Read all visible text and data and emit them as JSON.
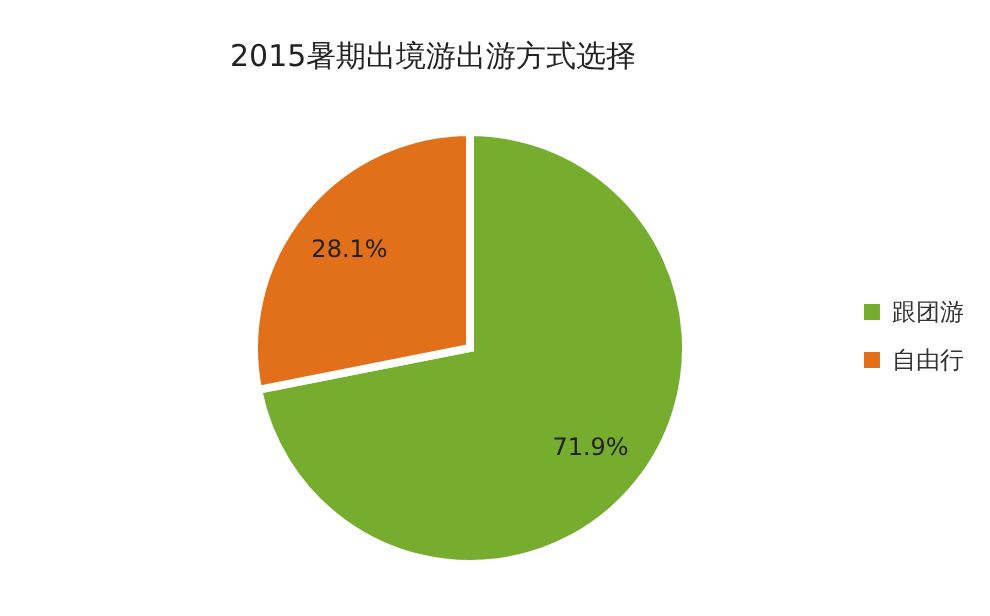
{
  "chart_data": {
    "type": "pie",
    "title": "2015暑期出境游出游方式选择",
    "categories": [
      "跟团游",
      "自由行"
    ],
    "values": [
      71.9,
      28.1
    ],
    "colors": [
      "#76ad2f",
      "#e2701a"
    ],
    "value_labels": [
      "71.9%",
      "28.1%"
    ],
    "legend": "right"
  }
}
